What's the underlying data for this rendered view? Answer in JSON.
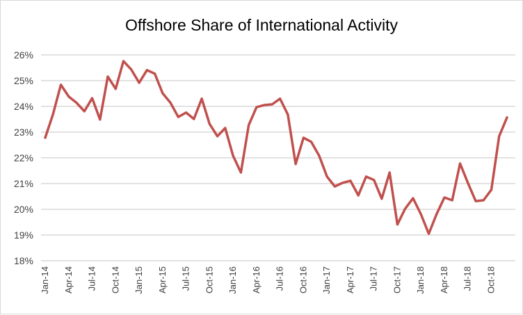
{
  "chart_data": {
    "type": "line",
    "title": "Offshore Share of International Activity",
    "xlabel": "",
    "ylabel": "",
    "ylim": [
      18,
      26
    ],
    "yticks": [
      "18%",
      "19%",
      "20%",
      "21%",
      "22%",
      "23%",
      "24%",
      "25%",
      "26%"
    ],
    "xtick_labels": [
      "Jan-14",
      "Apr-14",
      "Jul-14",
      "Oct-14",
      "Jan-15",
      "Apr-15",
      "Jul-15",
      "Oct-15",
      "Jan-16",
      "Apr-16",
      "Jul-16",
      "Oct-16",
      "Jan-17",
      "Apr-17",
      "Jul-17",
      "Oct-17",
      "Jan-18",
      "Apr-18",
      "Jul-18",
      "Oct-18"
    ],
    "x_start": "Jan-14",
    "x_end": "Dec-18",
    "grid": true,
    "line_color": "#C0504D",
    "series": [
      {
        "values": [
          22.78,
          23.7,
          24.84,
          24.38,
          24.14,
          23.81,
          24.32,
          23.49,
          25.16,
          24.68,
          25.76,
          25.43,
          24.92,
          25.41,
          25.27,
          24.51,
          24.14,
          23.59,
          23.76,
          23.51,
          24.3,
          23.32,
          22.84,
          23.16,
          22.08,
          21.43,
          23.27,
          23.97,
          24.05,
          24.08,
          24.3,
          23.68,
          21.76,
          22.78,
          22.62,
          22.08,
          21.27,
          20.89,
          21.03,
          21.11,
          20.54,
          21.27,
          21.14,
          20.41,
          21.43,
          19.41,
          20.03,
          20.43,
          19.81,
          19.05,
          19.81,
          20.46,
          20.35,
          21.78,
          21.03,
          20.32,
          20.35,
          20.76,
          22.84,
          23.57
        ]
      }
    ]
  }
}
